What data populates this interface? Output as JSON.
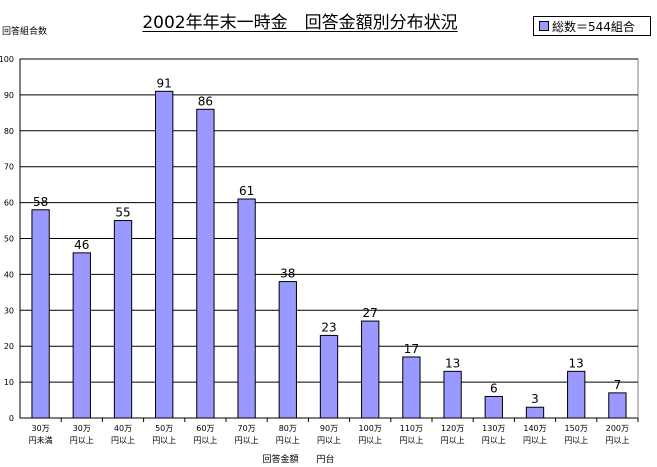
{
  "chart_data": {
    "type": "bar",
    "title": "2002年年末一時金　回答金額別分布状況",
    "ylabel": "回答組合数",
    "xlabel": "回答金額　　円台",
    "legend": {
      "placement": "top-right",
      "label": "総数＝544組合"
    },
    "ylim": [
      0,
      100
    ],
    "yticks": [
      "0",
      "10",
      "20",
      "30",
      "40",
      "50",
      "60",
      "70",
      "80",
      "90",
      "100"
    ],
    "grid": true,
    "categories": [
      [
        "30万",
        "円未満"
      ],
      [
        "30万",
        "円以上"
      ],
      [
        "40万",
        "円以上"
      ],
      [
        "50万",
        "円以上"
      ],
      [
        "60万",
        "円以上"
      ],
      [
        "70万",
        "円以上"
      ],
      [
        "80万",
        "円以上"
      ],
      [
        "90万",
        "円以上"
      ],
      [
        "100万",
        "円以上"
      ],
      [
        "110万",
        "円以上"
      ],
      [
        "120万",
        "円以上"
      ],
      [
        "130万",
        "円以上"
      ],
      [
        "140万",
        "円以上"
      ],
      [
        "150万",
        "円以上"
      ],
      [
        "200万",
        "円以上"
      ]
    ],
    "series": [
      {
        "name": "総数＝544組合",
        "values": [
          58,
          46,
          55,
          91,
          86,
          61,
          38,
          23,
          27,
          17,
          13,
          6,
          3,
          13,
          7
        ]
      }
    ],
    "colors": {
      "bar_fill": "#9999ff",
      "bar_stroke": "#000000",
      "grid": "#000000",
      "background": "#ffffff"
    }
  }
}
